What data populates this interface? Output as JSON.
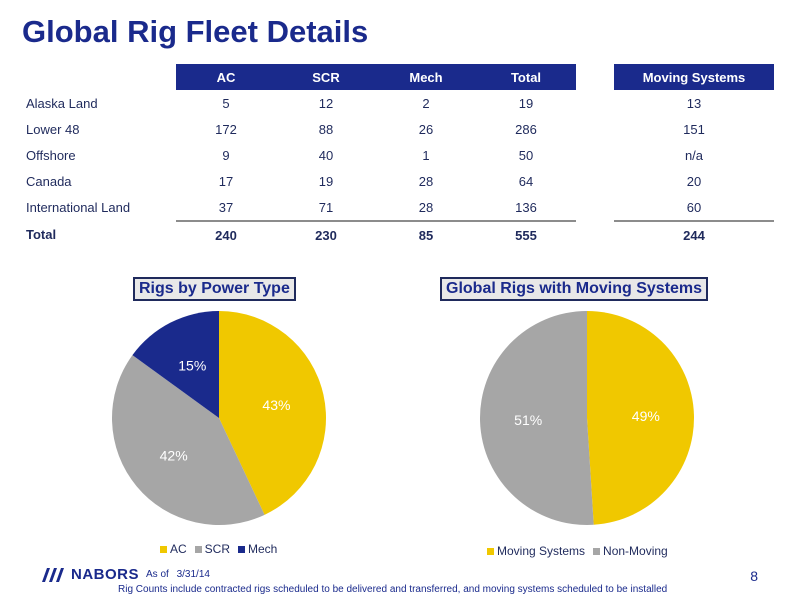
{
  "title": "Global Rig Fleet Details",
  "table": {
    "headers": [
      "AC",
      "SCR",
      "Mech",
      "Total"
    ],
    "moving_header": "Moving Systems",
    "rows": [
      {
        "label": "Alaska Land",
        "ac": "5",
        "scr": "12",
        "mech": "2",
        "total": "19",
        "moving": "13"
      },
      {
        "label": "Lower 48",
        "ac": "172",
        "scr": "88",
        "mech": "26",
        "total": "286",
        "moving": "151"
      },
      {
        "label": "Offshore",
        "ac": "9",
        "scr": "40",
        "mech": "1",
        "total": "50",
        "moving": "n/a"
      },
      {
        "label": "Canada",
        "ac": "17",
        "scr": "19",
        "mech": "28",
        "total": "64",
        "moving": "20"
      },
      {
        "label": "International Land",
        "ac": "37",
        "scr": "71",
        "mech": "28",
        "total": "136",
        "moving": "60"
      }
    ],
    "total": {
      "label": "Total",
      "ac": "240",
      "scr": "230",
      "mech": "85",
      "total": "555",
      "moving": "244"
    }
  },
  "chart_data": [
    {
      "type": "pie",
      "title": "Rigs by Power Type",
      "categories": [
        "AC",
        "SCR",
        "Mech"
      ],
      "values": [
        43,
        42,
        15
      ],
      "labels": [
        "43%",
        "42%",
        "15%"
      ],
      "colors": [
        "#f0c800",
        "#a6a6a6",
        "#1a2a8c"
      ],
      "label_colors": [
        "#ffffff",
        "#ffffff",
        "#ffffff"
      ],
      "legend": "bottom"
    },
    {
      "type": "pie",
      "title": "Global Rigs with Moving Systems",
      "categories": [
        "Moving Systems",
        "Non-Moving"
      ],
      "values": [
        49,
        51
      ],
      "labels": [
        "49%",
        "51%"
      ],
      "colors": [
        "#f0c800",
        "#a6a6a6"
      ],
      "label_colors": [
        "#ffffff",
        "#ffffff"
      ],
      "legend": "bottom"
    }
  ],
  "footer": {
    "logo_text": "NABORS",
    "logo_icon": "nabors-stripes-icon",
    "as_of_label": "As of",
    "as_of_date": "3/31/14",
    "note": "Rig Counts include contracted rigs scheduled to be delivered and transferred, and moving systems scheduled to be installed",
    "page_number": "8"
  }
}
